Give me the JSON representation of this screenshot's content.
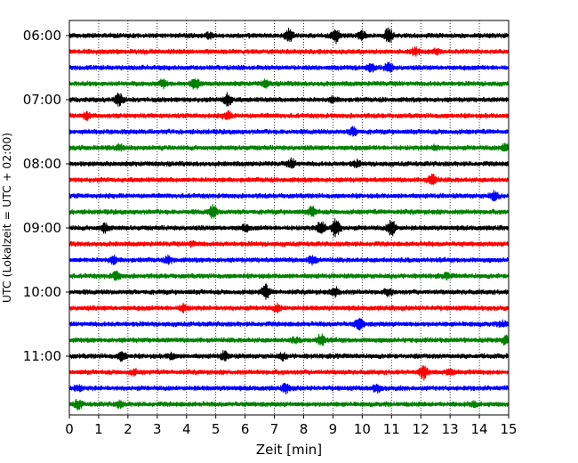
{
  "chart_data": {
    "type": "line",
    "title": "",
    "xlabel": "Zeit  [min]",
    "ylabel": "UTC (Lokalzeit = UTC + 02:00)",
    "xlim": [
      0,
      15
    ],
    "x_ticks": [
      0,
      1,
      2,
      3,
      4,
      5,
      6,
      7,
      8,
      9,
      10,
      11,
      12,
      13,
      14,
      15
    ],
    "y_tick_labels": [
      "06:00",
      "07:00",
      "08:00",
      "09:00",
      "10:00",
      "11:00"
    ],
    "y_tick_traces": [
      0,
      4,
      8,
      12,
      16,
      20
    ],
    "grid": "vertical dotted at each minute",
    "legend": "none",
    "colors": [
      "#000000",
      "#ff0000",
      "#0000ff",
      "#008000"
    ],
    "traces": [
      {
        "time": "06:00",
        "color": "#000000",
        "events": [
          [
            7.5,
            0.9
          ],
          [
            9.1,
            1.0
          ],
          [
            10.0,
            0.6
          ],
          [
            10.9,
            1.0
          ],
          [
            4.8,
            0.4
          ]
        ]
      },
      {
        "time": "06:15",
        "color": "#ff0000",
        "events": [
          [
            11.8,
            0.5
          ],
          [
            12.5,
            0.3
          ]
        ]
      },
      {
        "time": "06:30",
        "color": "#0000ff",
        "events": [
          [
            10.3,
            0.6
          ],
          [
            10.9,
            0.7
          ]
        ]
      },
      {
        "time": "06:45",
        "color": "#008000",
        "events": [
          [
            3.2,
            0.5
          ],
          [
            4.3,
            0.8
          ],
          [
            6.7,
            0.4
          ]
        ]
      },
      {
        "time": "07:00",
        "color": "#000000",
        "events": [
          [
            1.7,
            0.9
          ],
          [
            5.4,
            0.9
          ],
          [
            9.0,
            0.3
          ]
        ]
      },
      {
        "time": "07:15",
        "color": "#ff0000",
        "events": [
          [
            0.6,
            0.5
          ],
          [
            5.4,
            0.5
          ]
        ]
      },
      {
        "time": "07:30",
        "color": "#0000ff",
        "events": [
          [
            9.7,
            0.6
          ]
        ]
      },
      {
        "time": "07:45",
        "color": "#008000",
        "events": [
          [
            1.7,
            0.5
          ],
          [
            14.9,
            0.6
          ],
          [
            12.5,
            0.3
          ]
        ]
      },
      {
        "time": "08:00",
        "color": "#000000",
        "events": [
          [
            7.6,
            0.6
          ],
          [
            9.8,
            0.4
          ]
        ]
      },
      {
        "time": "08:15",
        "color": "#ff0000",
        "events": [
          [
            12.4,
            0.8
          ]
        ]
      },
      {
        "time": "08:30",
        "color": "#0000ff",
        "events": [
          [
            14.5,
            0.6
          ]
        ]
      },
      {
        "time": "08:45",
        "color": "#008000",
        "events": [
          [
            4.9,
            0.9
          ],
          [
            8.3,
            0.7
          ]
        ]
      },
      {
        "time": "09:00",
        "color": "#000000",
        "events": [
          [
            1.2,
            0.6
          ],
          [
            6.0,
            0.4
          ],
          [
            8.6,
            1.0
          ],
          [
            9.1,
            1.4
          ],
          [
            11.0,
            1.2
          ]
        ]
      },
      {
        "time": "09:15",
        "color": "#ff0000",
        "events": [
          [
            4.2,
            0.3
          ]
        ]
      },
      {
        "time": "09:30",
        "color": "#0000ff",
        "events": [
          [
            1.5,
            0.5
          ],
          [
            3.4,
            0.5
          ],
          [
            8.3,
            0.6
          ]
        ]
      },
      {
        "time": "09:45",
        "color": "#008000",
        "events": [
          [
            1.6,
            0.6
          ],
          [
            12.9,
            0.3
          ]
        ]
      },
      {
        "time": "10:00",
        "color": "#000000",
        "events": [
          [
            6.7,
            1.0
          ],
          [
            9.1,
            0.6
          ],
          [
            10.9,
            0.4
          ]
        ]
      },
      {
        "time": "10:15",
        "color": "#ff0000",
        "events": [
          [
            3.9,
            0.5
          ],
          [
            7.1,
            0.5
          ]
        ]
      },
      {
        "time": "10:30",
        "color": "#0000ff",
        "events": [
          [
            9.9,
            0.8
          ],
          [
            14.8,
            0.4
          ]
        ]
      },
      {
        "time": "10:45",
        "color": "#008000",
        "events": [
          [
            8.6,
            0.8
          ],
          [
            14.9,
            0.6
          ],
          [
            7.7,
            0.3
          ]
        ]
      },
      {
        "time": "11:00",
        "color": "#000000",
        "events": [
          [
            1.8,
            0.6
          ],
          [
            3.5,
            0.4
          ],
          [
            5.3,
            0.6
          ],
          [
            7.3,
            0.4
          ]
        ]
      },
      {
        "time": "11:15",
        "color": "#ff0000",
        "events": [
          [
            12.1,
            0.9
          ],
          [
            13.0,
            0.5
          ],
          [
            2.2,
            0.3
          ]
        ]
      },
      {
        "time": "11:30",
        "color": "#0000ff",
        "events": [
          [
            7.4,
            0.6
          ],
          [
            10.5,
            0.5
          ],
          [
            0.3,
            0.4
          ]
        ]
      },
      {
        "time": "11:45",
        "color": "#008000",
        "events": [
          [
            0.3,
            0.6
          ],
          [
            1.7,
            0.4
          ],
          [
            13.8,
            0.3
          ]
        ]
      }
    ]
  }
}
